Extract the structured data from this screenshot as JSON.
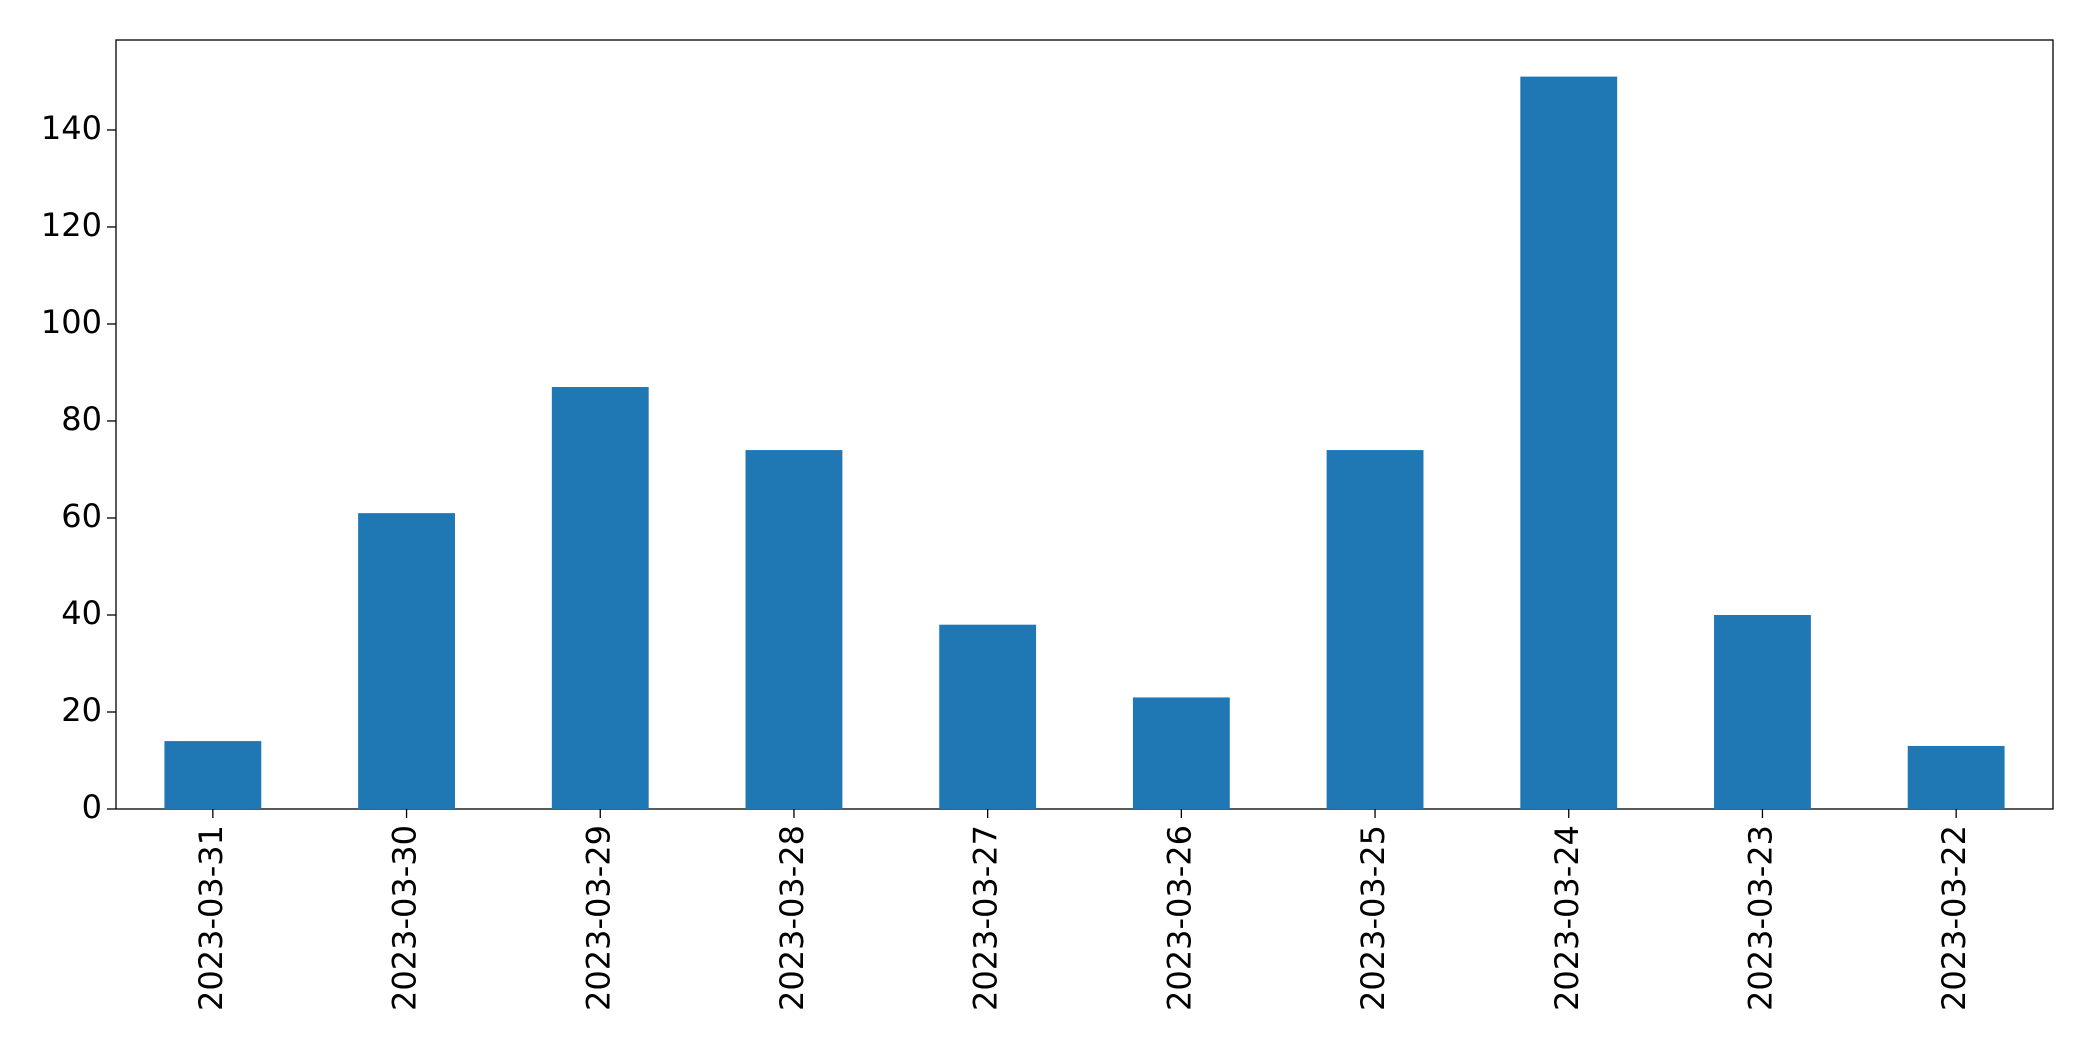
{
  "chart_data": {
    "type": "bar",
    "categories": [
      "2023-03-31",
      "2023-03-30",
      "2023-03-29",
      "2023-03-28",
      "2023-03-27",
      "2023-03-26",
      "2023-03-25",
      "2023-03-24",
      "2023-03-23",
      "2023-03-22"
    ],
    "values": [
      14,
      61,
      87,
      74,
      38,
      23,
      74,
      151,
      40,
      13
    ],
    "color": "#1f77b4",
    "ylim": [
      0,
      158.55
    ],
    "yticks": [
      0,
      20,
      40,
      60,
      80,
      100,
      120,
      140
    ],
    "grid": false
  }
}
